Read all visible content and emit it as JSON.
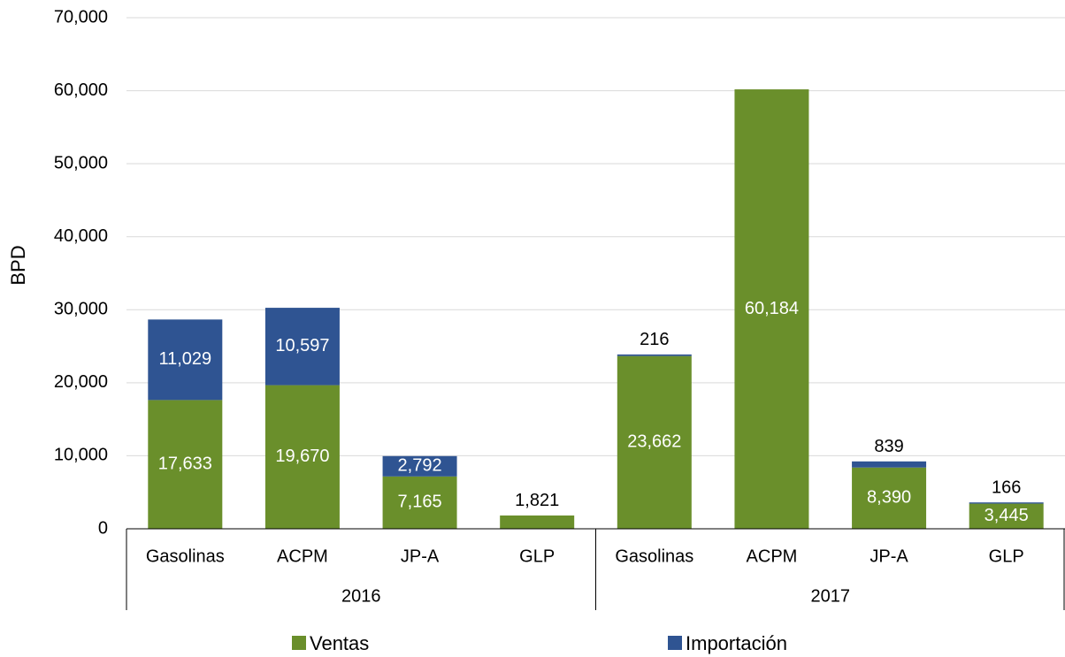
{
  "chart_data": {
    "type": "stacked-bar",
    "y_axis_label": "BPD",
    "groups": [
      "2016",
      "2017"
    ],
    "categories": [
      "Gasolinas",
      "ACPM",
      "JP-A",
      "GLP",
      "Gasolinas",
      "ACPM",
      "JP-A",
      "GLP"
    ],
    "series": [
      {
        "name": "Ventas",
        "color": "#6a8f2b",
        "values": [
          17633,
          19670,
          7165,
          1821,
          23662,
          60184,
          8390,
          3445
        ],
        "value_labels": [
          "17,633",
          "19,670",
          "7,165",
          "1,821",
          "23,662",
          "60,184",
          "8,390",
          "3,445"
        ]
      },
      {
        "name": "Importación",
        "color": "#2f5492",
        "values": [
          11029,
          10597,
          2792,
          null,
          216,
          null,
          839,
          166
        ],
        "value_labels": [
          "11,029",
          "10,597",
          "2,792",
          null,
          "216",
          null,
          "839",
          "166"
        ]
      }
    ],
    "ylim": [
      0,
      70000
    ],
    "yticks": [
      0,
      {
        "value": 10000,
        "label": "10,000"
      },
      {
        "value": 20000,
        "label": "20,000"
      },
      {
        "value": 30000,
        "label": "30,000"
      },
      {
        "value": 40000,
        "label": "40,000"
      },
      {
        "value": 50000,
        "label": "50,000"
      },
      {
        "value": 60000,
        "label": "60,000"
      },
      {
        "value": 70000,
        "label": "70,000"
      }
    ],
    "grid": true
  }
}
